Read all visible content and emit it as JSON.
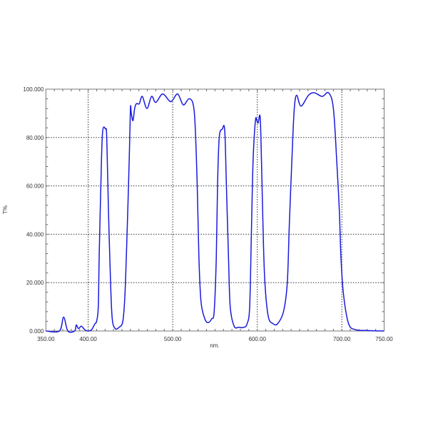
{
  "chart_data": {
    "type": "line",
    "title": "",
    "xlabel": "nm.",
    "ylabel": "T%",
    "xlim": [
      350,
      750
    ],
    "ylim": [
      0,
      100
    ],
    "xticks": [
      350,
      400,
      500,
      600,
      700,
      750
    ],
    "xtick_labels": [
      "350.00",
      "400.00",
      "500.00",
      "600.00",
      "700.00",
      "750.00"
    ],
    "yticks": [
      0,
      20,
      40,
      60,
      80,
      100
    ],
    "ytick_labels": [
      "0.000",
      "20.000",
      "40.000",
      "60.000",
      "80.000",
      "100.000"
    ],
    "grid": true,
    "line_color": "#1a1adc",
    "series": [
      {
        "x": [
          350,
          366,
          371,
          376,
          384,
          386,
          388.5,
          392,
          396,
          400,
          404,
          408,
          410,
          412,
          413,
          415,
          417,
          420.5,
          422,
          424,
          426.5,
          428.5,
          432,
          436.5,
          441,
          443.5,
          446,
          448.5,
          450,
          451,
          453,
          455,
          457,
          460.5,
          464,
          469.5,
          475,
          480,
          488,
          496.5,
          500,
          506,
          512.5,
          519,
          524,
          526.5,
          529,
          531,
          533.5,
          538,
          542,
          546,
          549,
          551.5,
          553,
          555,
          558.7,
          561.5,
          563.5,
          566,
          568,
          572.6,
          578,
          584,
          588,
          591,
          593,
          595,
          597.8,
          599.5,
          601,
          603.4,
          605,
          607,
          609,
          613,
          618.7,
          624,
          631,
          635.5,
          638,
          642,
          644,
          646.6,
          651.7,
          660.6,
          667.6,
          676.8,
          684.4,
          690,
          694,
          697,
          699,
          702,
          708,
          716.5,
          730,
          750
        ],
        "y": [
          0,
          0,
          5.7,
          0,
          0,
          2.5,
          1,
          2,
          0.5,
          0,
          0.5,
          3,
          4,
          10,
          30,
          60,
          82,
          83.5,
          80,
          50,
          20,
          5,
          1,
          1.5,
          4,
          15,
          40,
          70,
          92,
          90,
          87,
          92,
          94,
          94,
          97,
          92,
          97,
          94.5,
          98,
          95,
          95.5,
          98,
          93.5,
          96,
          94,
          85,
          60,
          30,
          12,
          5,
          3.5,
          5,
          8,
          30,
          60,
          80,
          83.5,
          83,
          60,
          30,
          10,
          2,
          1.5,
          1.5,
          3,
          10,
          40,
          70,
          87,
          87,
          86,
          88.5,
          70,
          40,
          20,
          6,
          3,
          3,
          8,
          20,
          45,
          80,
          93,
          97.5,
          93,
          97.5,
          98.5,
          97,
          98.5,
          92,
          70,
          50,
          30,
          15,
          3,
          0.5,
          0.2,
          0
        ]
      }
    ]
  }
}
